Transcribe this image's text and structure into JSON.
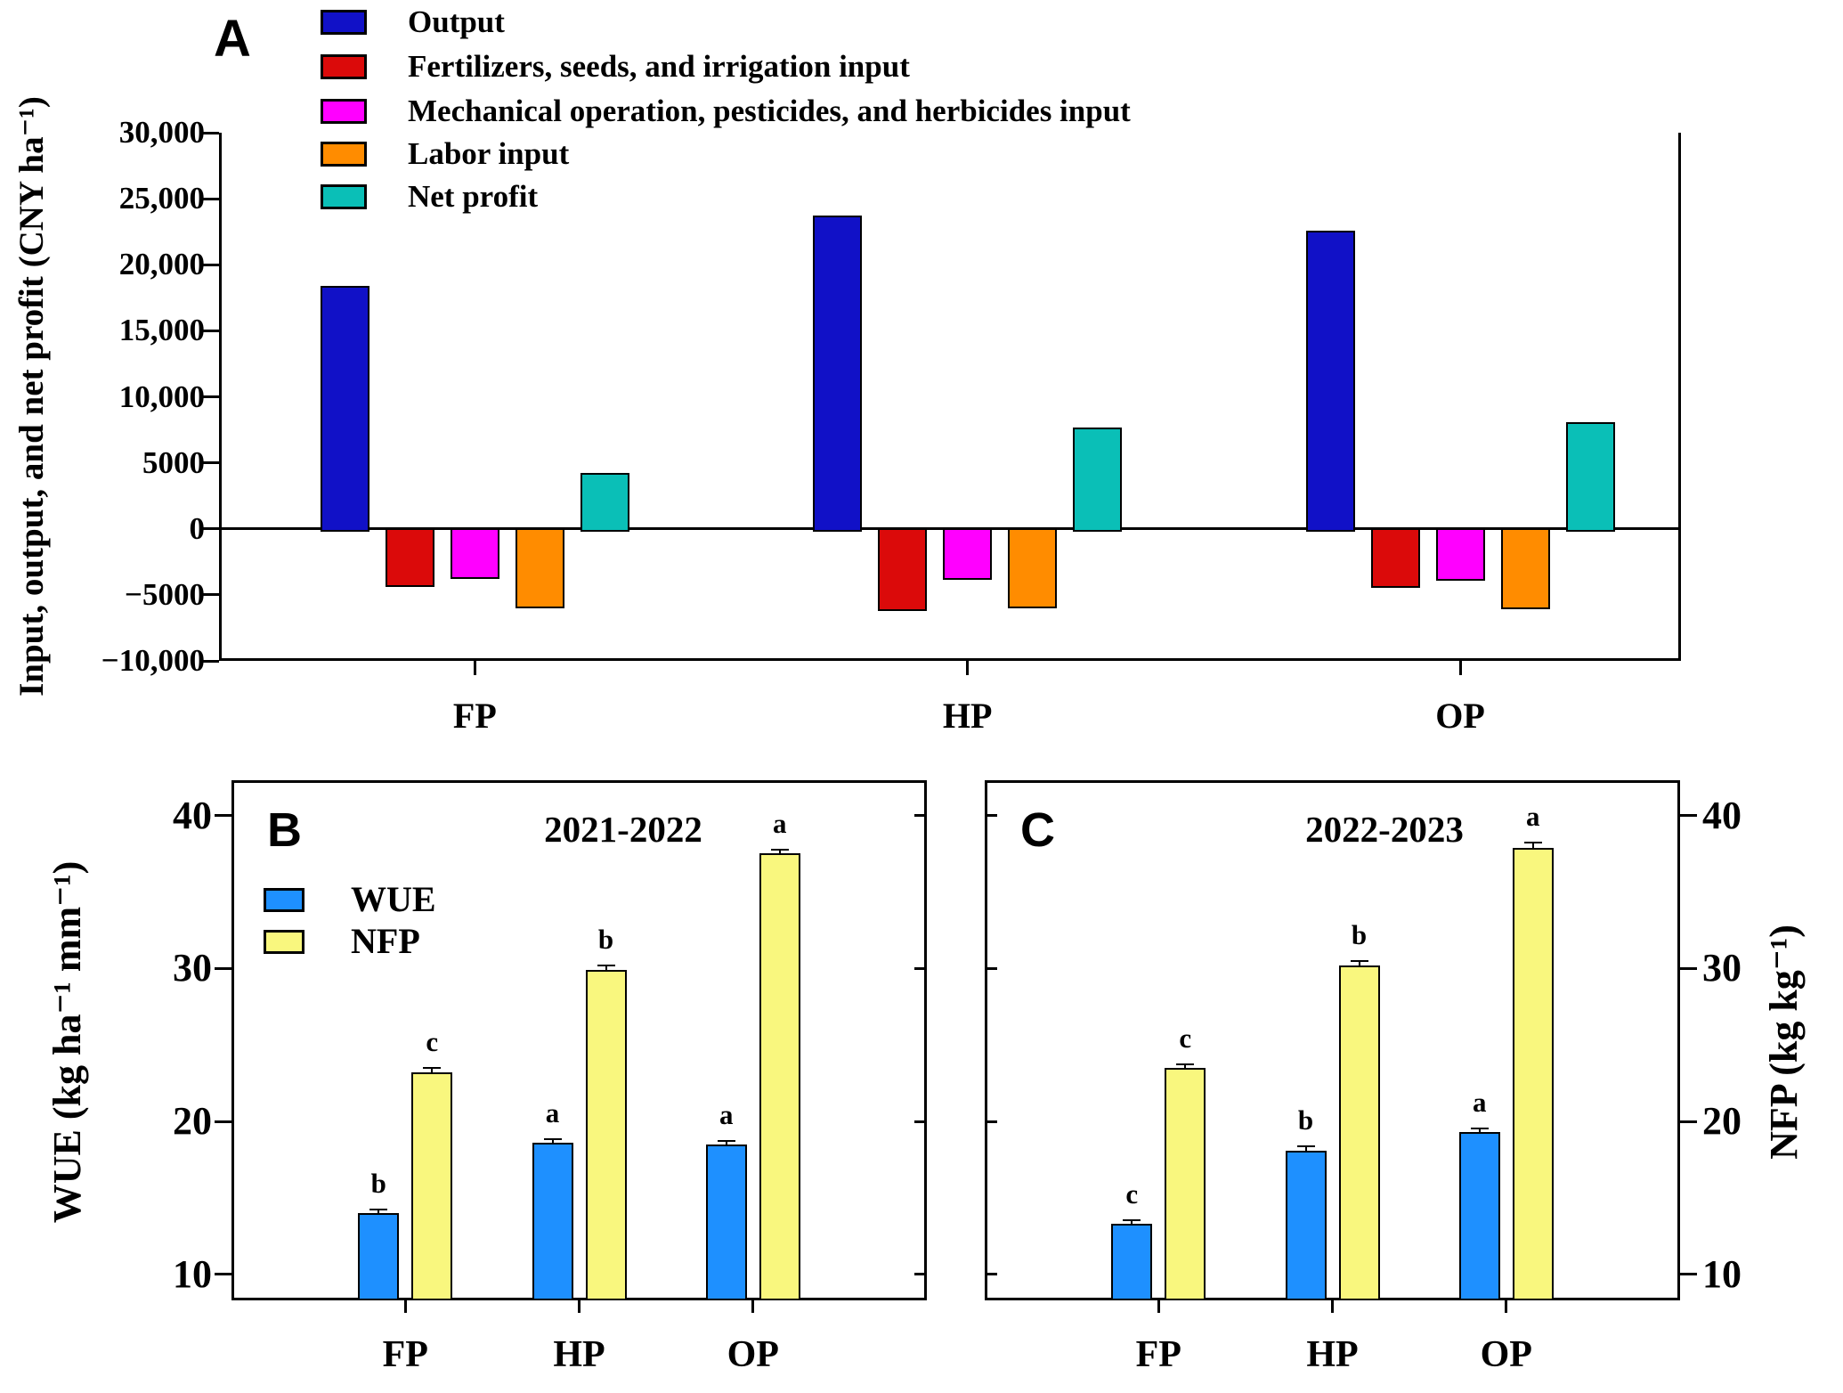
{
  "chart_data": [
    {
      "letter": "A",
      "type": "bar",
      "title": "",
      "y_axis_label": "Input, output, and net profit (CNY ha⁻¹)",
      "categories": [
        "FP",
        "HP",
        "OP"
      ],
      "series": [
        {
          "name": "Output",
          "color": "#1111C7",
          "values": [
            18400,
            23700,
            22600
          ]
        },
        {
          "name": "Fertilizers, seeds, and irrigation input",
          "color": "#DB0A0A",
          "values": [
            -4400,
            -6200,
            -4500
          ]
        },
        {
          "name": "Mechanical operation, pesticides, and herbicides input",
          "color": "#FF00FF",
          "values": [
            -3800,
            -3850,
            -3900
          ]
        },
        {
          "name": "Labor input",
          "color": "#FF8C00",
          "values": [
            -6000,
            -6000,
            -6100
          ]
        },
        {
          "name": "Net profit",
          "color": "#0ABFB7",
          "values": [
            4200,
            7650,
            8100
          ]
        }
      ],
      "ylim": [
        -10000,
        30000
      ],
      "y_ticks": [
        {
          "v": 30000,
          "label": "30,000"
        },
        {
          "v": 25000,
          "label": "25,000"
        },
        {
          "v": 20000,
          "label": "20,000"
        },
        {
          "v": 15000,
          "label": "15,000"
        },
        {
          "v": 10000,
          "label": "10,000"
        },
        {
          "v": 5000,
          "label": "5000"
        },
        {
          "v": 0,
          "label": "0"
        },
        {
          "v": -5000,
          "label": "−5000"
        },
        {
          "v": -10000,
          "label": "−10,000"
        }
      ],
      "legend_position": "top-left",
      "grid": false
    },
    {
      "letter": "B",
      "type": "bar",
      "title": "2021-2022",
      "y_axis_label": "WUE (kg ha⁻¹ mm⁻¹)",
      "categories": [
        "FP",
        "HP",
        "OP"
      ],
      "series": [
        {
          "name": "WUE",
          "color": "#1E90FF",
          "values": [
            14.0,
            18.6,
            18.5
          ],
          "errors": [
            0.15,
            0.1,
            0.1
          ],
          "letters": [
            "b",
            "a",
            "a"
          ]
        },
        {
          "name": "NFP",
          "color": "#F9F77E",
          "values": [
            23.2,
            29.9,
            37.5
          ],
          "errors": [
            0.3,
            0.3,
            0.25
          ],
          "letters": [
            "c",
            "b",
            "a"
          ]
        }
      ],
      "ylim": [
        8.3,
        42.3
      ],
      "y_ticks": [
        {
          "v": 10,
          "label": "10"
        },
        {
          "v": 20,
          "label": "20"
        },
        {
          "v": 30,
          "label": "30"
        },
        {
          "v": 40,
          "label": "40"
        }
      ],
      "tick_label_side": "left",
      "legend_position": "upper-left",
      "grid": false
    },
    {
      "letter": "C",
      "type": "bar",
      "title": "2022-2023",
      "y_axis_label": "NFP (kg kg⁻¹)",
      "categories": [
        "FP",
        "HP",
        "OP"
      ],
      "series": [
        {
          "name": "WUE",
          "color": "#1E90FF",
          "values": [
            13.3,
            18.1,
            19.3
          ],
          "errors": [
            0.2,
            0.25,
            0.15
          ],
          "letters": [
            "c",
            "b",
            "a"
          ]
        },
        {
          "name": "NFP",
          "color": "#F9F77E",
          "values": [
            23.5,
            30.2,
            37.9
          ],
          "errors": [
            0.25,
            0.3,
            0.3
          ],
          "letters": [
            "c",
            "b",
            "a"
          ]
        }
      ],
      "ylim": [
        8.3,
        42.3
      ],
      "y_ticks": [
        {
          "v": 10,
          "label": "10"
        },
        {
          "v": 20,
          "label": "20"
        },
        {
          "v": 30,
          "label": "30"
        },
        {
          "v": 40,
          "label": "40"
        }
      ],
      "tick_label_side": "right",
      "legend_position": "none",
      "grid": false
    }
  ]
}
